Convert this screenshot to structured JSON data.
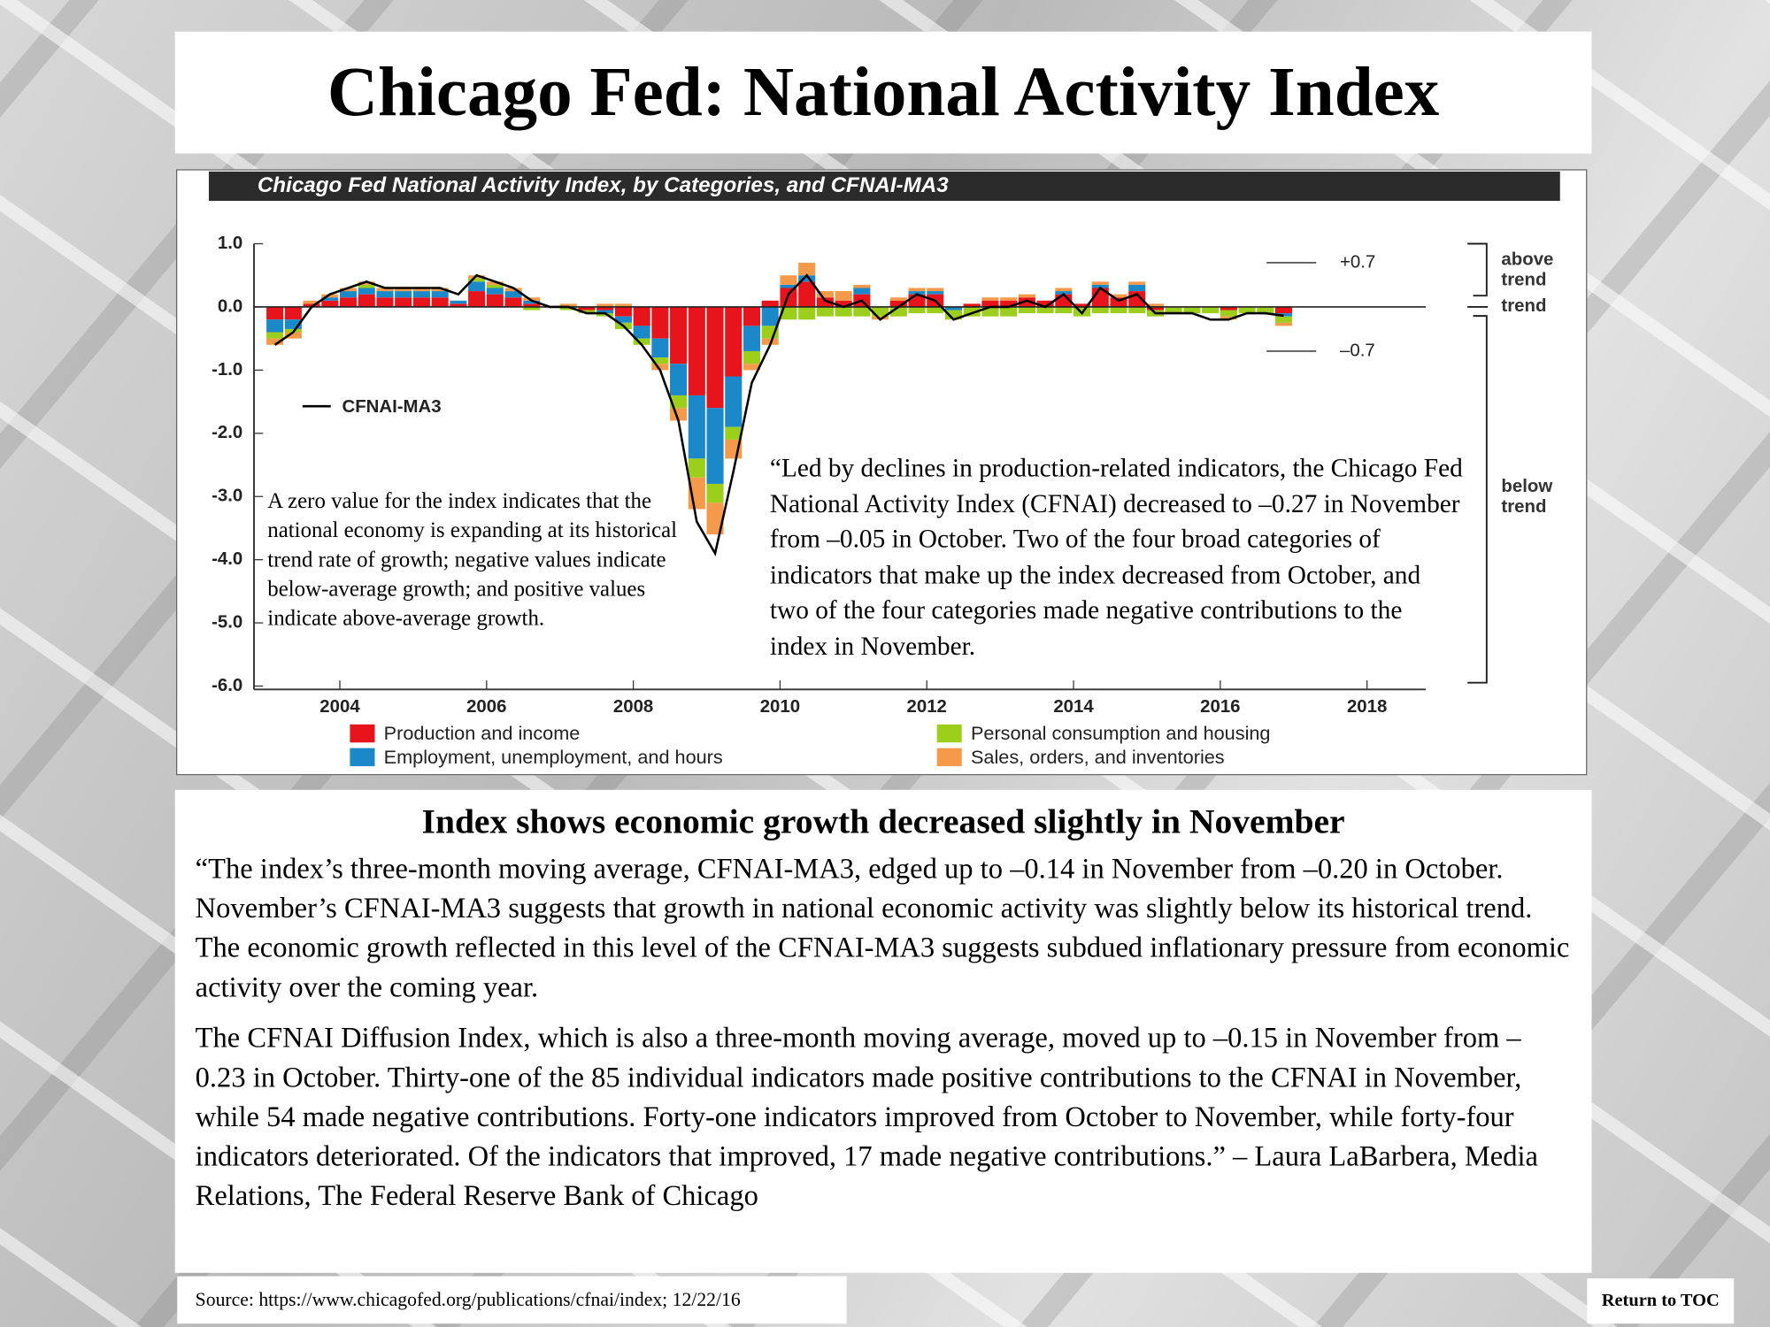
{
  "header": {
    "title": "Chicago Fed:  National Activity Index"
  },
  "chart_data": {
    "type": "stacked_bar",
    "title": "Chicago Fed National Activity Index, by Categories, and CFNAI-MA3",
    "x": [
      2003,
      2003.25,
      2003.5,
      2003.75,
      2004,
      2004.25,
      2004.5,
      2004.75,
      2005,
      2005.25,
      2005.5,
      2005.75,
      2006,
      2006.25,
      2006.5,
      2006.75,
      2007,
      2007.25,
      2007.5,
      2007.75,
      2008,
      2008.25,
      2008.5,
      2008.75,
      2009,
      2009.25,
      2009.5,
      2009.75,
      2010,
      2010.25,
      2010.5,
      2010.75,
      2011,
      2011.25,
      2011.5,
      2011.75,
      2012,
      2012.25,
      2012.5,
      2012.75,
      2013,
      2013.25,
      2013.5,
      2013.75,
      2014,
      2014.25,
      2014.5,
      2014.75,
      2015,
      2015.25,
      2015.5,
      2015.75,
      2016,
      2016.25,
      2016.5,
      2016.75
    ],
    "series": [
      {
        "name": "Production and income",
        "color": "#e8141b",
        "values": [
          -0.2,
          -0.2,
          0.05,
          0.1,
          0.15,
          0.2,
          0.15,
          0.15,
          0.15,
          0.15,
          0.05,
          0.25,
          0.2,
          0.15,
          0.05,
          0,
          0,
          -0.05,
          -0.05,
          -0.15,
          -0.3,
          -0.5,
          -0.9,
          -1.4,
          -1.6,
          -1.1,
          -0.3,
          0.1,
          0.3,
          0.4,
          0.15,
          0.1,
          0.2,
          0,
          0.1,
          0.2,
          0.2,
          0,
          0.05,
          0.1,
          0.1,
          0.15,
          0.1,
          0.2,
          0.05,
          0.3,
          0.15,
          0.25,
          -0.05,
          0,
          0,
          0,
          -0.05,
          0,
          0,
          -0.1
        ]
      },
      {
        "name": "Employment, unemployment, and hours",
        "color": "#1a88c9",
        "values": [
          -0.2,
          -0.15,
          0,
          0.05,
          0.1,
          0.1,
          0.1,
          0.1,
          0.1,
          0.1,
          0.05,
          0.15,
          0.1,
          0.1,
          0.05,
          0,
          0,
          0,
          -0.05,
          -0.1,
          -0.2,
          -0.3,
          -0.5,
          -1,
          -1.2,
          -0.8,
          -0.4,
          -0.3,
          0.05,
          0.1,
          0,
          0,
          0.1,
          0,
          0,
          0.05,
          0.05,
          -0.05,
          0,
          0,
          0,
          0,
          0,
          0.05,
          0,
          0.05,
          0,
          0.1,
          0,
          0,
          0,
          0,
          0,
          0,
          0,
          -0.05
        ]
      },
      {
        "name": "Personal consumption and housing",
        "color": "#9ccf1c",
        "values": [
          -0.1,
          -0.05,
          0,
          0,
          0,
          0.05,
          0,
          0,
          0,
          0,
          0,
          0.05,
          0.05,
          0,
          -0.05,
          0,
          -0.05,
          -0.05,
          -0.05,
          -0.1,
          -0.1,
          -0.1,
          -0.2,
          -0.3,
          -0.3,
          -0.2,
          -0.2,
          -0.2,
          -0.2,
          -0.2,
          -0.15,
          -0.15,
          -0.15,
          -0.15,
          -0.15,
          -0.1,
          -0.1,
          -0.15,
          -0.15,
          -0.15,
          -0.15,
          -0.1,
          -0.1,
          -0.1,
          -0.15,
          -0.1,
          -0.1,
          -0.1,
          -0.1,
          -0.1,
          -0.1,
          -0.1,
          -0.1,
          -0.1,
          -0.1,
          -0.1
        ]
      },
      {
        "name": "Sales, orders, and inventories",
        "color": "#f59a4a",
        "values": [
          -0.1,
          -0.1,
          0.05,
          0.05,
          0.05,
          0.05,
          0.05,
          0.05,
          0.05,
          0.05,
          0,
          0.05,
          0.05,
          0.05,
          0.05,
          0,
          0.05,
          0,
          0.05,
          0.05,
          0,
          -0.1,
          -0.2,
          -0.5,
          -0.5,
          -0.3,
          -0.1,
          -0.1,
          0.15,
          0.2,
          0.1,
          0.15,
          0.05,
          -0.05,
          0.05,
          0.05,
          0.05,
          0,
          0,
          0.05,
          0.05,
          0.05,
          0,
          0.05,
          0,
          0.05,
          0.05,
          0.05,
          0.05,
          0,
          0,
          0,
          -0.05,
          0,
          0,
          -0.05
        ]
      }
    ],
    "line": {
      "name": "CFNAI-MA3",
      "color": "#000000",
      "values": [
        -0.6,
        -0.4,
        0,
        0.2,
        0.3,
        0.4,
        0.3,
        0.3,
        0.3,
        0.3,
        0.2,
        0.5,
        0.4,
        0.3,
        0.1,
        0,
        0,
        -0.1,
        -0.1,
        -0.3,
        -0.6,
        -1,
        -1.8,
        -3.4,
        -3.9,
        -2.6,
        -1.2,
        -0.6,
        0.2,
        0.5,
        0.1,
        0,
        0.1,
        -0.2,
        0,
        0.2,
        0.1,
        -0.2,
        -0.1,
        0,
        0,
        0.1,
        0,
        0.2,
        -0.1,
        0.3,
        0.1,
        0.2,
        -0.1,
        -0.1,
        -0.1,
        -0.2,
        -0.2,
        -0.1,
        -0.1,
        -0.14
      ]
    },
    "xlim": [
      2002.83,
      2018.8
    ],
    "xticks": [
      2004,
      2006,
      2008,
      2010,
      2012,
      2014,
      2016,
      2018
    ],
    "ylim": [
      -6,
      1
    ],
    "yticks": [
      {
        "value": 1,
        "label": "1.0"
      },
      {
        "value": 0,
        "label": "0.0"
      },
      {
        "value": -1,
        "label": "-1.0"
      },
      {
        "value": -2,
        "label": "-2.0"
      },
      {
        "value": -3,
        "label": "-3.0"
      },
      {
        "value": -4,
        "label": "-4.0"
      },
      {
        "value": -5,
        "label": "-5.0"
      },
      {
        "value": -6,
        "label": "-6.0"
      }
    ],
    "reference_lines": [
      {
        "value": 0.7,
        "label": "+0.7"
      },
      {
        "value": -0.7,
        "label": "–0.7"
      }
    ],
    "bands": [
      "above trend",
      "trend",
      "below trend"
    ],
    "annotations": [
      "A zero value for the index indicates that the national economy is expanding at its historical trend rate of growth; negative values indicate below-average growth; and positive values indicate above-average growth.",
      "“Led by declines in production-related indicators, the Chicago Fed National Activity Index (CFNAI) decreased to –0.27 in November from –0.05 in October.  Two of the four broad categories of indicators that make up the index decreased from October, and two of the four categories made negative contributions to the index in November."
    ]
  },
  "body": {
    "heading": "Index shows economic growth decreased slightly in November",
    "paragraphs": [
      "“The index’s three-month moving average, CFNAI-MA3, edged up to –0.14 in November from –0.20 in October. November’s CFNAI-MA3 suggests that growth in national economic activity was slightly below its historical trend.  The economic growth reflected in this level of the CFNAI-MA3 suggests subdued inflationary pressure from economic activity over the coming year.",
      "The CFNAI Diffusion Index, which is also a three-month moving average, moved up to –0.15 in November from –0.23 in October.  Thirty-one of the 85 individual indicators made positive contributions to the CFNAI in November, while 54 made negative contributions.  Forty-one indicators improved from October to November, while forty-four indicators deteriorated.  Of the indicators that improved, 17 made negative contributions.” – Laura LaBarbera, Media Relations, The Federal Reserve Bank of Chicago"
    ]
  },
  "footer": {
    "source": "Source: https://www.chicagofed.org/publications/cfnai/index; 12/22/16",
    "button": "Return to TOC"
  }
}
